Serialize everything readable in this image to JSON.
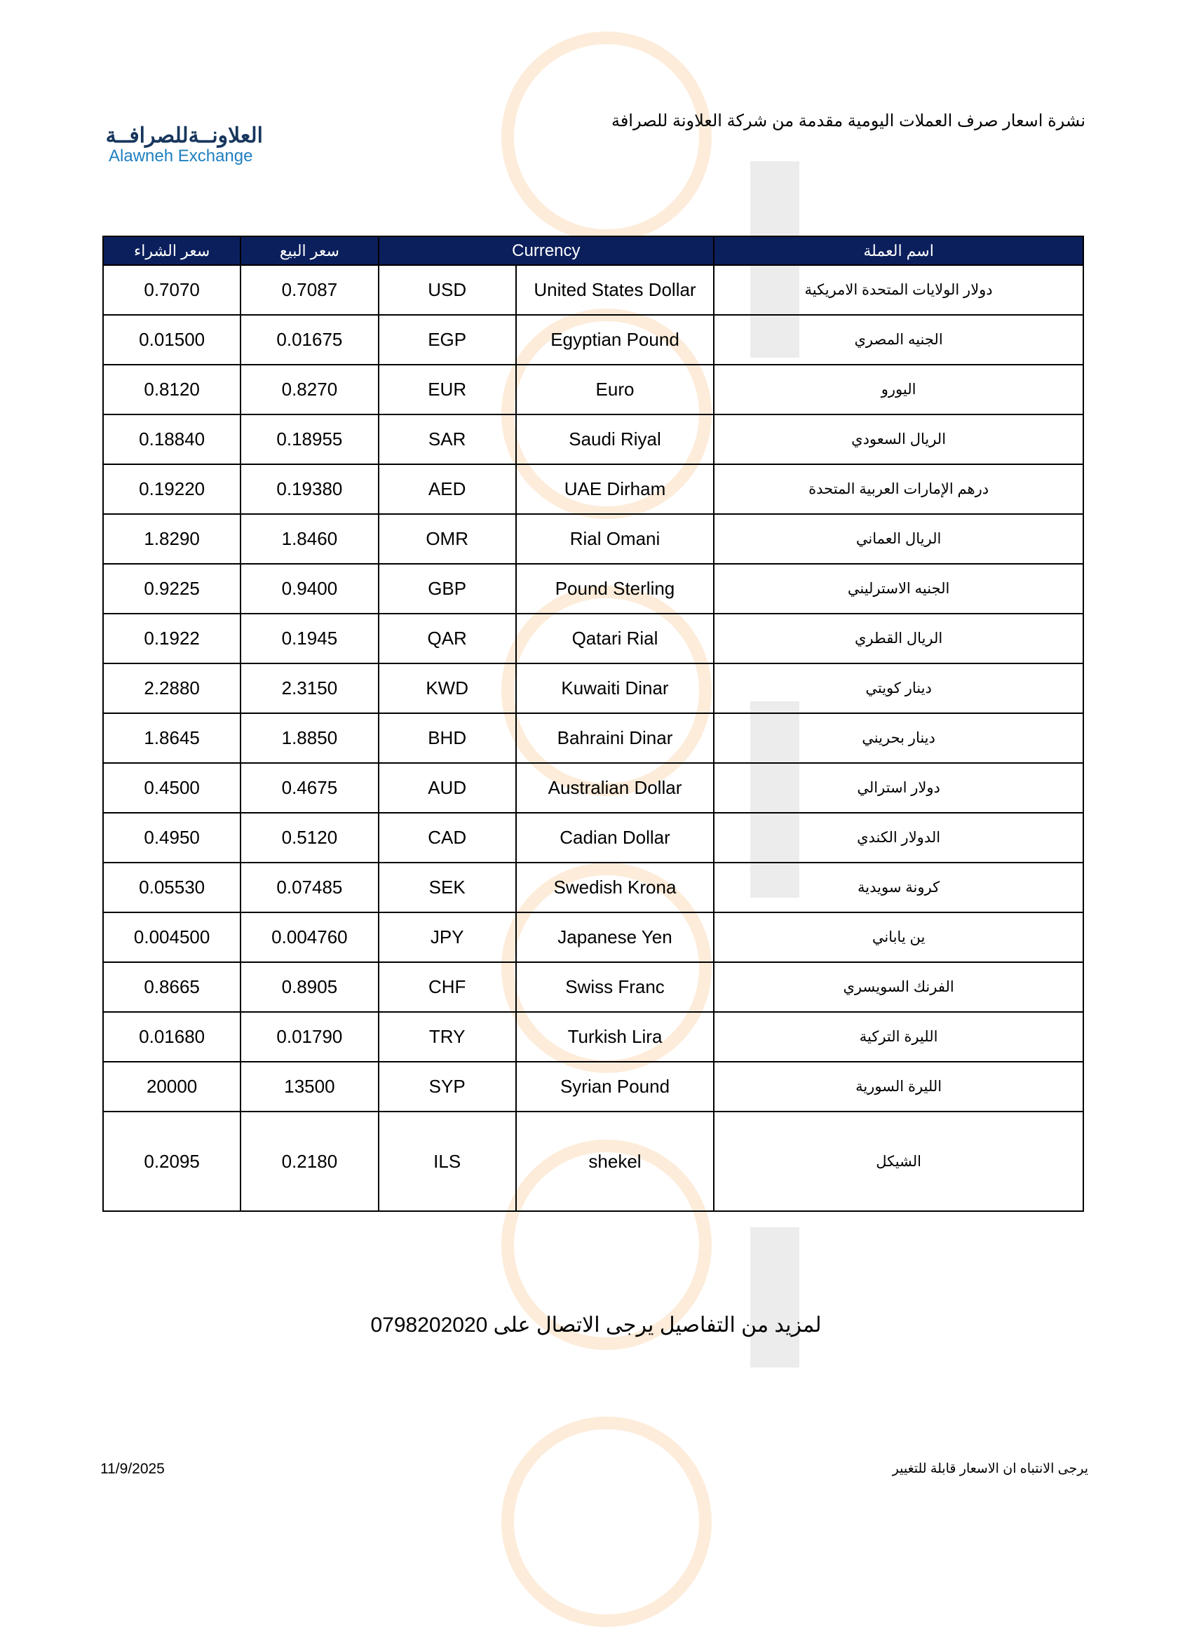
{
  "header": {
    "title": "نشرة اسعار صرف العملات اليومية مقدمة من شركة العلاونة للصرافة",
    "logo_ar": "العلاونــةللصرافــة",
    "logo_en": "Alawneh Exchange"
  },
  "table": {
    "columns": [
      "سعر الشراء",
      "سعر البيع",
      "Currency",
      "اسم العملة"
    ],
    "header_color": "#0b1f5c",
    "rows": [
      {
        "buy": "0.7070",
        "sell": "0.7087",
        "code": "USD",
        "name_en": "United States Dollar",
        "name_ar": "دولار الولايات المتحدة الامريكية"
      },
      {
        "buy": "0.01500",
        "sell": "0.01675",
        "code": "EGP",
        "name_en": "Egyptian Pound",
        "name_ar": "الجنيه المصري"
      },
      {
        "buy": "0.8120",
        "sell": "0.8270",
        "code": "EUR",
        "name_en": "Euro",
        "name_ar": "اليورو"
      },
      {
        "buy": "0.18840",
        "sell": "0.18955",
        "code": "SAR",
        "name_en": "Saudi Riyal",
        "name_ar": "الريال السعودي"
      },
      {
        "buy": "0.19220",
        "sell": "0.19380",
        "code": "AED",
        "name_en": "UAE Dirham",
        "name_ar": "درهم الإمارات العربية المتحدة"
      },
      {
        "buy": "1.8290",
        "sell": "1.8460",
        "code": "OMR",
        "name_en": "Rial Omani",
        "name_ar": "الريال العماني"
      },
      {
        "buy": "0.9225",
        "sell": "0.9400",
        "code": "GBP",
        "name_en": "Pound Sterling",
        "name_ar": "الجنيه الاسترليني"
      },
      {
        "buy": "0.1922",
        "sell": "0.1945",
        "code": "QAR",
        "name_en": "Qatari Rial",
        "name_ar": "الريال القطري"
      },
      {
        "buy": "2.2880",
        "sell": "2.3150",
        "code": "KWD",
        "name_en": "Kuwaiti Dinar",
        "name_ar": "دينار كويتي"
      },
      {
        "buy": "1.8645",
        "sell": "1.8850",
        "code": "BHD",
        "name_en": "Bahraini Dinar",
        "name_ar": "دينار بحريني"
      },
      {
        "buy": "0.4500",
        "sell": "0.4675",
        "code": "AUD",
        "name_en": "Australian Dollar",
        "name_ar": "دولار استرالي"
      },
      {
        "buy": "0.4950",
        "sell": "0.5120",
        "code": "CAD",
        "name_en": "Cadian Dollar",
        "name_ar": "الدولار الكندي"
      },
      {
        "buy": "0.05530",
        "sell": "0.07485",
        "code": "SEK",
        "name_en": "Swedish Krona",
        "name_ar": "كرونة سويدية"
      },
      {
        "buy": "0.004500",
        "sell": "0.004760",
        "code": "JPY",
        "name_en": "Japanese Yen",
        "name_ar": "ين ياباني"
      },
      {
        "buy": "0.8665",
        "sell": "0.8905",
        "code": "CHF",
        "name_en": "Swiss Franc",
        "name_ar": "الفرنك السويسري"
      },
      {
        "buy": "0.01680",
        "sell": "0.01790",
        "code": "TRY",
        "name_en": "Turkish Lira",
        "name_ar": "الليرة التركية"
      },
      {
        "buy": "20000",
        "sell": "13500",
        "code": "SYP",
        "name_en": "Syrian Pound",
        "name_ar": "الليرة السورية"
      },
      {
        "buy": "0.2095",
        "sell": "0.2180",
        "code": "ILS",
        "name_en": "shekel",
        "name_ar": "الشيكل"
      }
    ]
  },
  "contact": "لمزيد من التفاصيل يرجى الاتصال على 0798202020",
  "footer": {
    "date": "11/9/2025",
    "note": "يرجى الانتباه ان الاسعار قابلة للتغيير"
  }
}
